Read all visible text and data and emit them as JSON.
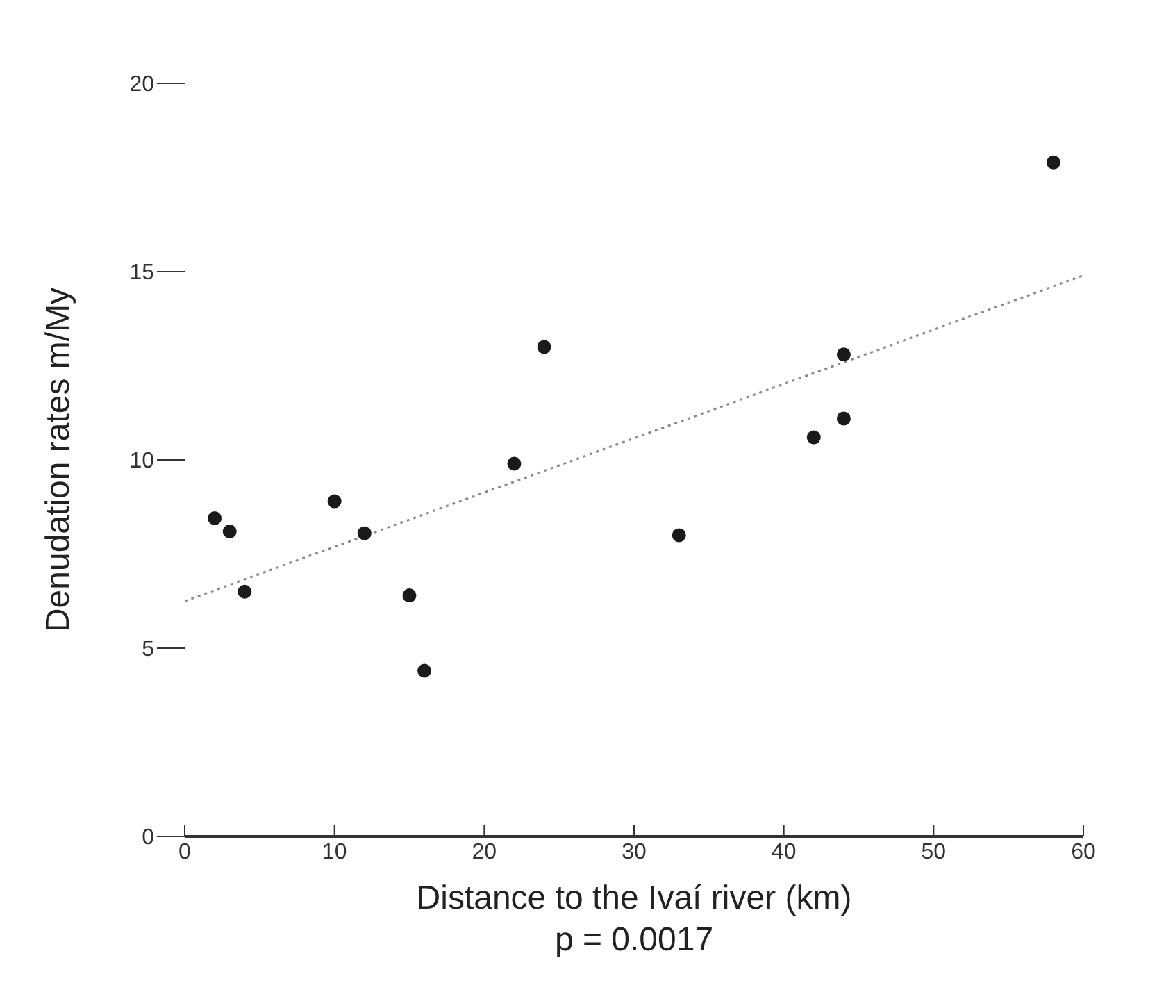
{
  "chart_data": {
    "type": "scatter",
    "xlabel": "Distance to the Ivaí river (km)",
    "ylabel": "Denudation rates m/My",
    "annotations": [
      "p = 0.0017"
    ],
    "xlim": [
      0,
      60
    ],
    "xticks": [
      0,
      10,
      20,
      30,
      40,
      50,
      60
    ],
    "ylim": [
      0,
      20
    ],
    "yticks": [
      0,
      5,
      10,
      15,
      20
    ],
    "series": [
      {
        "type": "scatter",
        "color": "#1a1a1a",
        "marker": "circle",
        "x": [
          2,
          3,
          4,
          10,
          12,
          15,
          16,
          22,
          24,
          33,
          42,
          44,
          44,
          58
        ],
        "values": [
          8.45,
          8.1,
          6.5,
          8.9,
          8.05,
          6.4,
          4.4,
          9.9,
          13.0,
          8.0,
          10.6,
          12.8,
          11.1,
          17.9
        ]
      },
      {
        "type": "line",
        "color": "#888888",
        "line_style": "dotted",
        "marker": "none",
        "x": [
          0,
          60
        ],
        "values": [
          6.25,
          14.9
        ]
      }
    ]
  }
}
